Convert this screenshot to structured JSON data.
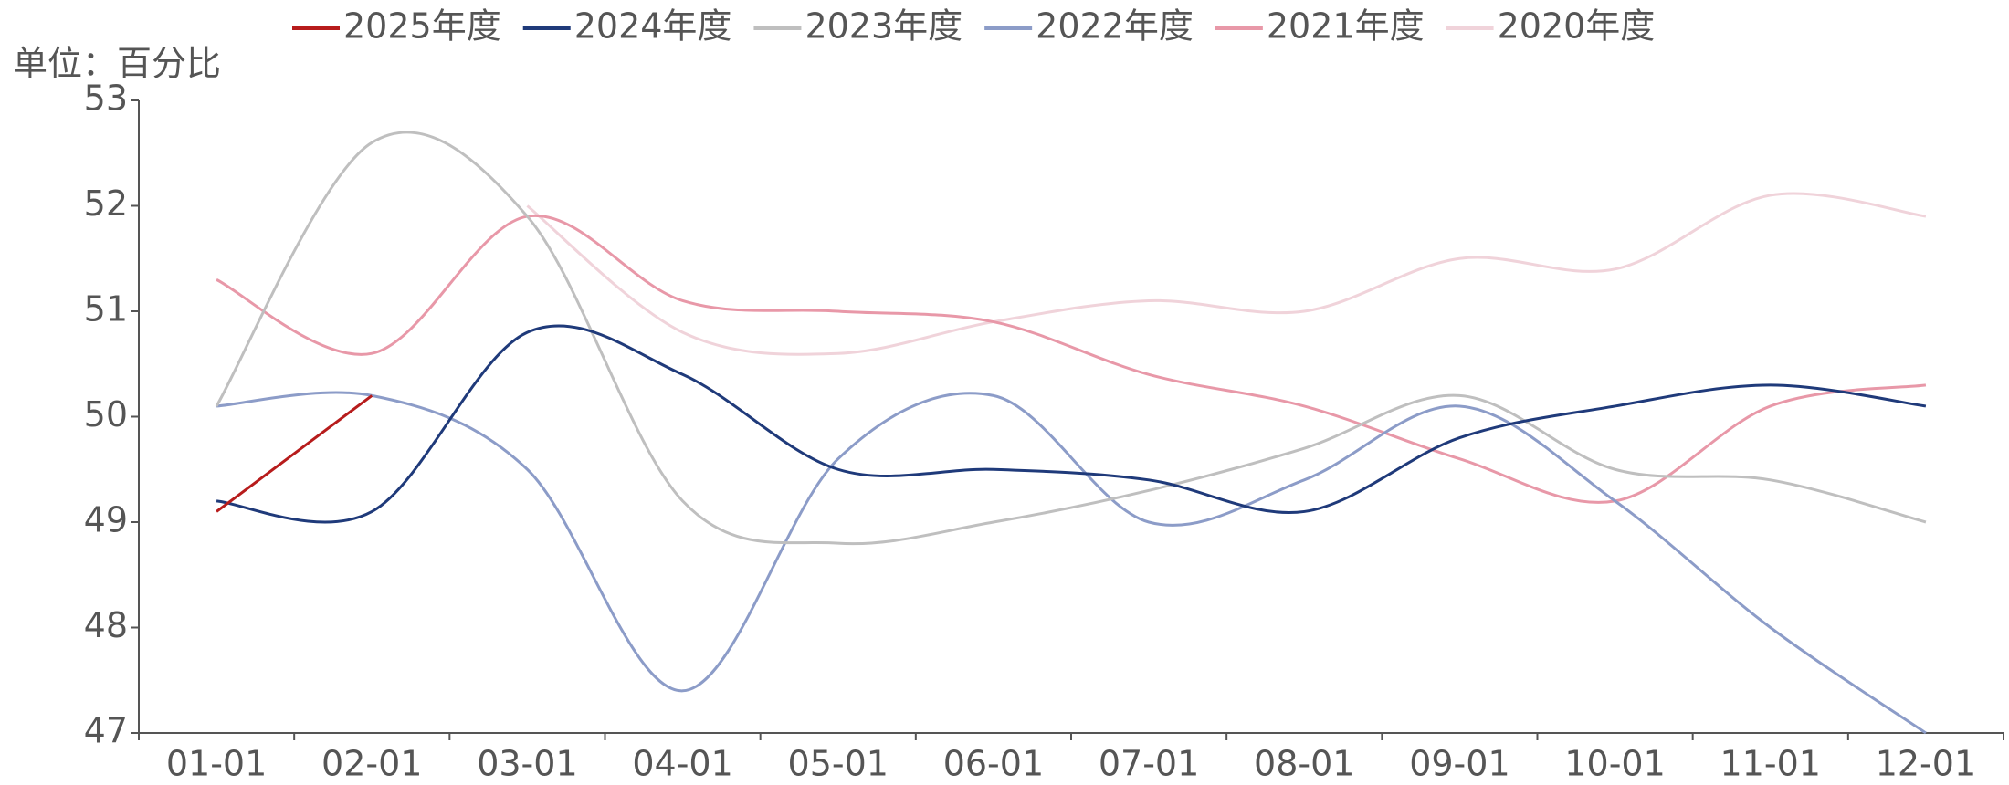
{
  "chart_data": {
    "type": "line",
    "unit_label": "单位：百分比",
    "categories": [
      "01-01",
      "02-01",
      "03-01",
      "04-01",
      "05-01",
      "06-01",
      "07-01",
      "08-01",
      "09-01",
      "10-01",
      "11-01",
      "12-01"
    ],
    "ylim": [
      47,
      53
    ],
    "yticks": [
      47,
      48,
      49,
      50,
      51,
      52,
      53
    ],
    "legend_position": "top",
    "smooth": true,
    "series": [
      {
        "name": "2025年度",
        "color": "#b71c1c",
        "values": [
          49.1,
          50.2,
          null,
          null,
          null,
          null,
          null,
          null,
          null,
          null,
          null,
          null
        ]
      },
      {
        "name": "2024年度",
        "color": "#1f3a7a",
        "values": [
          49.2,
          49.1,
          50.8,
          50.4,
          49.5,
          49.5,
          49.4,
          49.1,
          49.8,
          50.1,
          50.3,
          50.1
        ]
      },
      {
        "name": "2023年度",
        "color": "#bfbfbf",
        "values": [
          50.1,
          52.6,
          51.9,
          49.2,
          48.8,
          49.0,
          49.3,
          49.7,
          50.2,
          49.5,
          49.4,
          49.0
        ]
      },
      {
        "name": "2022年度",
        "color": "#8c9cc8",
        "values": [
          50.1,
          50.2,
          49.5,
          47.4,
          49.6,
          50.2,
          49.0,
          49.4,
          50.1,
          49.2,
          48.0,
          47.0
        ]
      },
      {
        "name": "2021年度",
        "color": "#e898a8",
        "values": [
          51.3,
          50.6,
          51.9,
          51.1,
          51.0,
          50.9,
          50.4,
          50.1,
          49.6,
          49.2,
          50.1,
          50.3
        ]
      },
      {
        "name": "2020年度",
        "color": "#f0d3da",
        "values": [
          null,
          null,
          52.0,
          50.8,
          50.6,
          50.9,
          51.1,
          51.0,
          51.5,
          51.4,
          52.1,
          51.9
        ]
      }
    ]
  }
}
